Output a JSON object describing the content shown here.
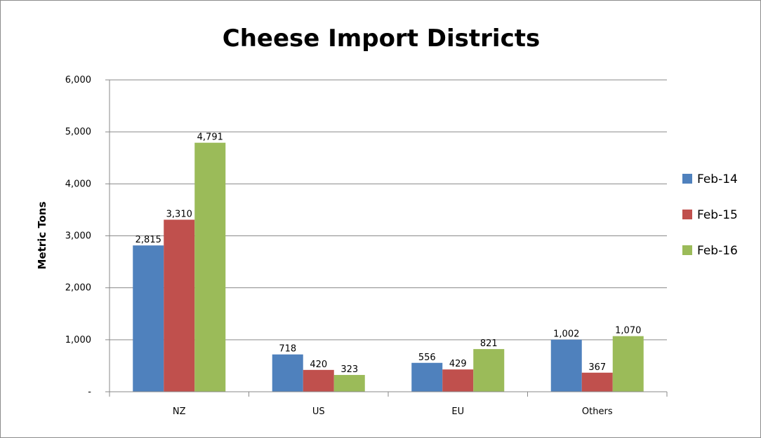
{
  "chart_data": {
    "type": "bar",
    "title": "Cheese Import Districts",
    "ylabel": "Metric Tons",
    "xlabel": "",
    "categories": [
      "NZ",
      "US",
      "EU",
      "Others"
    ],
    "ylim": [
      0,
      6000
    ],
    "yticks": [
      {
        "value": 0,
        "label": "-"
      },
      {
        "value": 1000,
        "label": "1,000"
      },
      {
        "value": 2000,
        "label": "2,000"
      },
      {
        "value": 3000,
        "label": "3,000"
      },
      {
        "value": 4000,
        "label": "4,000"
      },
      {
        "value": 5000,
        "label": "5,000"
      },
      {
        "value": 6000,
        "label": "6,000"
      }
    ],
    "grid": true,
    "legend_position": "right",
    "series": [
      {
        "name": "Feb-14",
        "color": "#4f81bd",
        "values": [
          2815,
          718,
          556,
          1002
        ],
        "labels": [
          "2,815",
          "718",
          "556",
          "1,002"
        ]
      },
      {
        "name": "Feb-15",
        "color": "#c0504d",
        "values": [
          3310,
          420,
          429,
          367
        ],
        "labels": [
          "3,310",
          "420",
          "429",
          "367"
        ]
      },
      {
        "name": "Feb-16",
        "color": "#9bbb59",
        "values": [
          4791,
          323,
          821,
          1070
        ],
        "labels": [
          "4,791",
          "323",
          "821",
          "1,070"
        ]
      }
    ]
  }
}
